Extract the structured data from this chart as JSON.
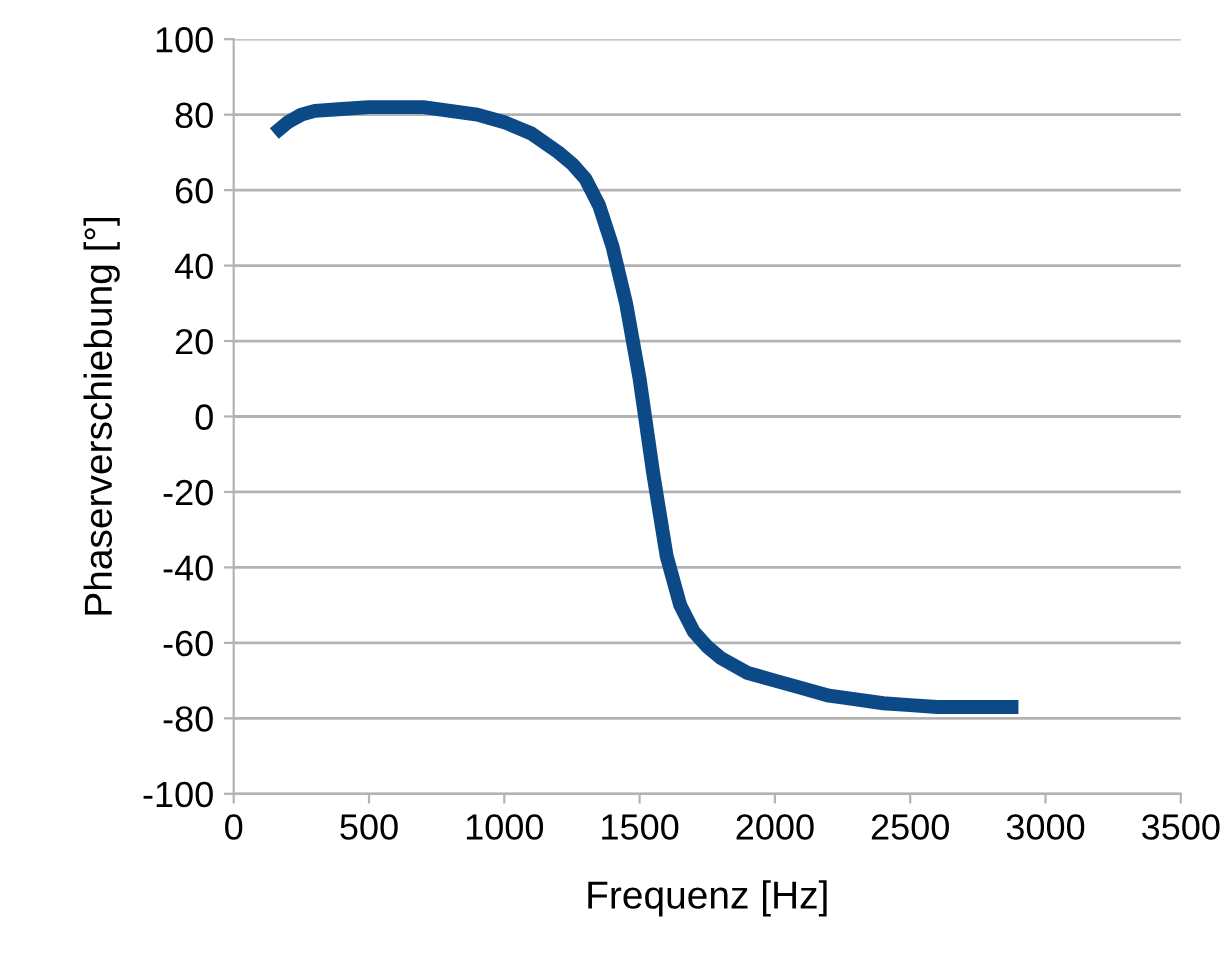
{
  "chart_data": {
    "type": "line",
    "xlabel": "Frequenz [Hz]",
    "ylabel": "Phaserverschiebung [°]",
    "x": [
      150,
      200,
      250,
      300,
      400,
      500,
      600,
      700,
      800,
      900,
      1000,
      1100,
      1200,
      1250,
      1300,
      1350,
      1400,
      1450,
      1500,
      1550,
      1600,
      1650,
      1700,
      1750,
      1800,
      1900,
      2000,
      2100,
      2200,
      2300,
      2400,
      2500,
      2600,
      2700,
      2800,
      2900
    ],
    "series": [
      {
        "color": "#0b4a87",
        "values": [
          75,
          78,
          80,
          81,
          81.5,
          82,
          82,
          82,
          81,
          80,
          78,
          75,
          70,
          67,
          63,
          56,
          45,
          30,
          10,
          -15,
          -37,
          -50,
          -57,
          -61,
          -64,
          -68,
          -70,
          -72,
          -74,
          -75,
          -76,
          -76.5,
          -77,
          -77,
          -77,
          -77
        ]
      }
    ],
    "xlim": [
      0,
      3500
    ],
    "xticks": [
      0,
      500,
      1000,
      1500,
      2000,
      2500,
      3000,
      3500
    ],
    "ylim": [
      -100,
      100
    ],
    "yticks": [
      -100,
      -80,
      -60,
      -40,
      -20,
      0,
      20,
      40,
      60,
      80,
      100
    ],
    "grid": "y",
    "legend": false,
    "marker": "none",
    "line_style": "solid"
  }
}
